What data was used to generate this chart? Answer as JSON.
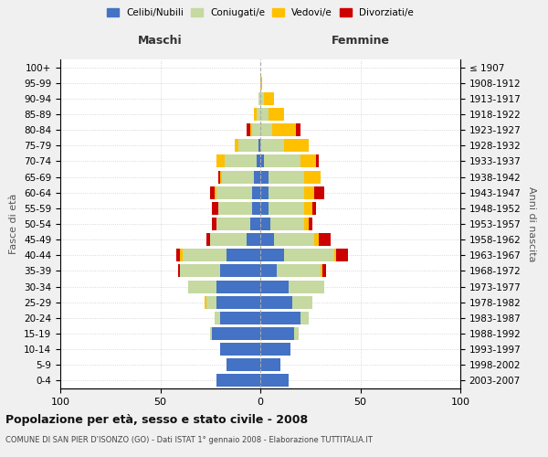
{
  "age_groups": [
    "0-4",
    "5-9",
    "10-14",
    "15-19",
    "20-24",
    "25-29",
    "30-34",
    "35-39",
    "40-44",
    "45-49",
    "50-54",
    "55-59",
    "60-64",
    "65-69",
    "70-74",
    "75-79",
    "80-84",
    "85-89",
    "90-94",
    "95-99",
    "100+"
  ],
  "birth_years": [
    "2003-2007",
    "1998-2002",
    "1993-1997",
    "1988-1992",
    "1983-1987",
    "1978-1982",
    "1973-1977",
    "1968-1972",
    "1963-1967",
    "1958-1962",
    "1953-1957",
    "1948-1952",
    "1943-1947",
    "1938-1942",
    "1933-1937",
    "1928-1932",
    "1923-1927",
    "1918-1922",
    "1913-1917",
    "1908-1912",
    "≤ 1907"
  ],
  "maschi": {
    "celibi": [
      22,
      17,
      20,
      24,
      20,
      22,
      22,
      20,
      17,
      7,
      5,
      4,
      4,
      3,
      2,
      1,
      0,
      0,
      0,
      0,
      0
    ],
    "coniugati": [
      0,
      0,
      0,
      1,
      3,
      5,
      14,
      20,
      22,
      18,
      17,
      17,
      18,
      16,
      16,
      10,
      4,
      2,
      1,
      0,
      0
    ],
    "vedovi": [
      0,
      0,
      0,
      0,
      0,
      1,
      0,
      0,
      1,
      0,
      0,
      0,
      1,
      1,
      4,
      2,
      1,
      1,
      0,
      0,
      0
    ],
    "divorziati": [
      0,
      0,
      0,
      0,
      0,
      0,
      0,
      1,
      2,
      2,
      2,
      3,
      2,
      1,
      0,
      0,
      2,
      0,
      0,
      0,
      0
    ]
  },
  "femmine": {
    "nubili": [
      14,
      10,
      15,
      17,
      20,
      16,
      14,
      8,
      12,
      7,
      5,
      4,
      4,
      4,
      2,
      0,
      0,
      0,
      0,
      0,
      0
    ],
    "coniugate": [
      0,
      0,
      0,
      2,
      4,
      10,
      18,
      22,
      25,
      20,
      17,
      18,
      18,
      18,
      18,
      12,
      6,
      4,
      2,
      0,
      0
    ],
    "vedove": [
      0,
      0,
      0,
      0,
      0,
      0,
      0,
      1,
      1,
      2,
      2,
      4,
      5,
      8,
      8,
      12,
      12,
      8,
      5,
      1,
      0
    ],
    "divorziate": [
      0,
      0,
      0,
      0,
      0,
      0,
      0,
      2,
      6,
      6,
      2,
      2,
      5,
      0,
      1,
      0,
      2,
      0,
      0,
      0,
      0
    ]
  },
  "colors": {
    "celibi": "#4472c4",
    "coniugati": "#c5d9a0",
    "vedovi": "#ffc000",
    "divorziati": "#cc0000"
  },
  "xlim": 100,
  "title": "Popolazione per età, sesso e stato civile - 2008",
  "subtitle": "COMUNE DI SAN PIER D'ISONZO (GO) - Dati ISTAT 1° gennaio 2008 - Elaborazione TUTTITALIA.IT",
  "ylabel_left": "Fasce di età",
  "ylabel_right": "Anni di nascita",
  "xlabel_left": "Maschi",
  "xlabel_right": "Femmine",
  "bg_color": "#f0f0f0",
  "plot_bg": "#ffffff"
}
